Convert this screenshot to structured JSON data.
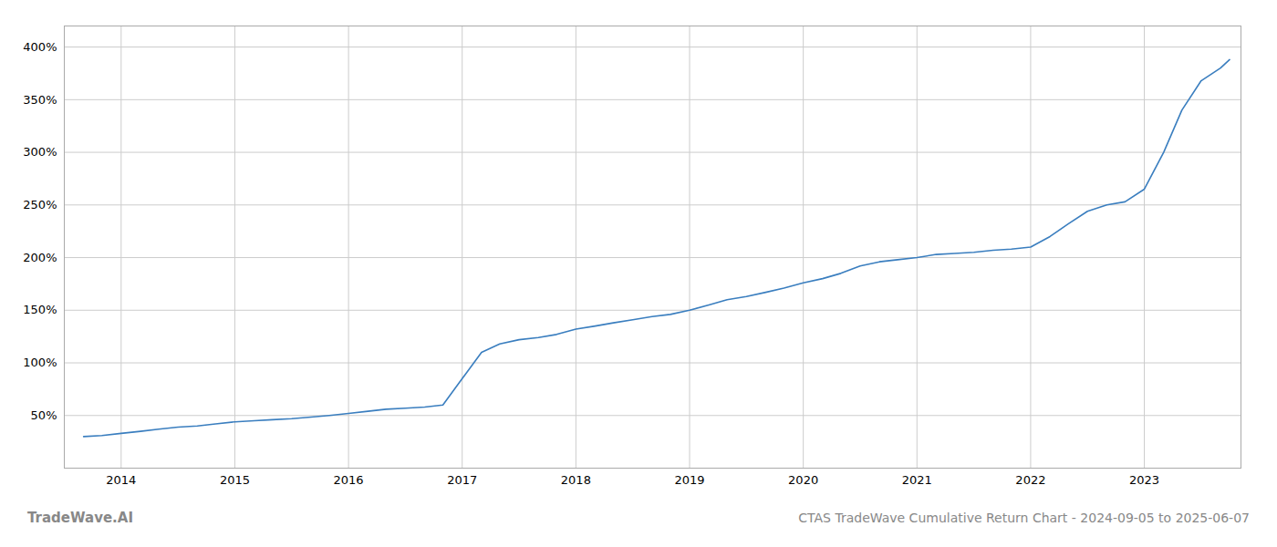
{
  "chart_data": {
    "type": "line",
    "title": "CTAS TradeWave Cumulative Return Chart - 2024-09-05 to 2025-06-07",
    "annotations": [
      "TradeWave.AI"
    ],
    "x": [
      2013.67,
      2013.83,
      2014.0,
      2014.17,
      2014.33,
      2014.5,
      2014.67,
      2014.83,
      2015.0,
      2015.17,
      2015.33,
      2015.5,
      2015.67,
      2015.83,
      2016.0,
      2016.17,
      2016.33,
      2016.5,
      2016.67,
      2016.83,
      2017.0,
      2017.17,
      2017.33,
      2017.5,
      2017.67,
      2017.83,
      2018.0,
      2018.17,
      2018.33,
      2018.5,
      2018.67,
      2018.83,
      2019.0,
      2019.17,
      2019.33,
      2019.5,
      2019.67,
      2019.83,
      2020.0,
      2020.17,
      2020.33,
      2020.5,
      2020.67,
      2020.83,
      2021.0,
      2021.17,
      2021.33,
      2021.5,
      2021.67,
      2021.83,
      2022.0,
      2022.17,
      2022.33,
      2022.5,
      2022.67,
      2022.83,
      2023.0,
      2023.17,
      2023.33,
      2023.5,
      2023.67,
      2023.75
    ],
    "values": [
      30,
      31,
      33,
      35,
      37,
      39,
      40,
      42,
      44,
      45,
      46,
      47,
      48.5,
      50,
      52,
      54,
      56,
      57,
      58,
      60,
      85,
      110,
      118,
      122,
      124,
      127,
      132,
      135,
      138,
      141,
      144,
      146,
      150,
      155,
      160,
      163,
      167,
      171,
      176,
      180,
      185,
      192,
      196,
      198,
      200,
      203,
      204,
      205,
      207,
      208,
      210,
      220,
      232,
      244,
      250,
      253,
      265,
      300,
      340,
      368,
      380,
      388
    ],
    "color": "#3a7ebf",
    "xlim": [
      2013.5,
      2023.85
    ],
    "xticks": [
      2014,
      2015,
      2016,
      2017,
      2018,
      2019,
      2020,
      2021,
      2022,
      2023
    ],
    "ylim": [
      0,
      420
    ],
    "yticks": [
      {
        "value": 50,
        "label": "50%"
      },
      {
        "value": 100,
        "label": "100%"
      },
      {
        "value": 150,
        "label": "150%"
      },
      {
        "value": 200,
        "label": "200%"
      },
      {
        "value": 250,
        "label": "250%"
      },
      {
        "value": 300,
        "label": "300%"
      },
      {
        "value": 350,
        "label": "350%"
      },
      {
        "value": 400,
        "label": "400%"
      }
    ],
    "grid": true
  }
}
